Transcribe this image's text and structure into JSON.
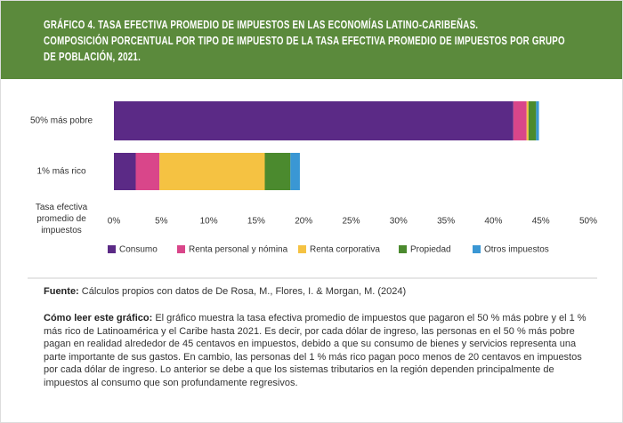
{
  "chart_data": {
    "type": "stacked-barh",
    "title": "GRÁFICO 4. TASA EFECTIVA PROMEDIO DE IMPUESTOS EN LAS ECONOMÍAS LATINO-CARIBEÑAS.",
    "subtitle": "COMPOSICIÓN PORCENTUAL POR TIPO DE IMPUESTO DE LA TASA EFECTIVA PROMEDIO DE IMPUESTOS POR GRUPO DE POBLACIÓN, 2021.",
    "xlabel": "Tasa efectiva promedio de impuestos",
    "categories": [
      "50% más pobre",
      "1% más rico"
    ],
    "series": [
      {
        "name": "Consumo",
        "color": "#5b2a86",
        "values": [
          42.1,
          2.3
        ]
      },
      {
        "name": "Renta personal y nómina",
        "color": "#d9468a",
        "values": [
          1.4,
          2.5
        ]
      },
      {
        "name": "Renta corporativa",
        "color": "#f5c242",
        "values": [
          0.2,
          11.1
        ]
      },
      {
        "name": "Propiedad",
        "color": "#4b8a2e",
        "values": [
          0.8,
          2.7
        ]
      },
      {
        "name": "Otros impuestos",
        "color": "#3a97d4",
        "values": [
          0.3,
          1.0
        ]
      }
    ],
    "xlim": [
      0,
      50
    ],
    "xticks": [
      {
        "value": 0,
        "label": "0%"
      },
      {
        "value": 5,
        "label": "5%"
      },
      {
        "value": 10,
        "label": "10%"
      },
      {
        "value": 15,
        "label": "15%"
      },
      {
        "value": 20,
        "label": "20%"
      },
      {
        "value": 25,
        "label": "25%"
      },
      {
        "value": 30,
        "label": "30%"
      },
      {
        "value": 35,
        "label": "35%"
      },
      {
        "value": 40,
        "label": "40%"
      },
      {
        "value": 45,
        "label": "45%"
      },
      {
        "value": 50,
        "label": "50%"
      }
    ],
    "legend": "bottom"
  },
  "notes": {
    "source_label": "Fuente:",
    "source": "Cálculos propios con datos de De Rosa, M., Flores, I. & Morgan, M. (2024)",
    "reading_label": "Cómo leer este gráfico:",
    "reading": "El gráfico muestra la tasa efectiva promedio de impuestos que pagaron el 50 % más pobre y el 1 % más rico de Latinoamérica y el Caribe hasta 2021. Es decir, por cada dólar de ingreso, las personas en el 50 % más pobre pagan en realidad alrededor de 45 centavos en impuestos, debido a que su consumo de bienes y servicios representa una parte importante de sus gastos. En cambio, las personas del 1 % más rico pagan poco menos de 20 centavos en impuestos por cada dólar de ingreso. Lo anterior se debe a que los sistemas tributarios en la región dependen principalmente de impuestos al consumo que son profundamente regresivos."
  }
}
